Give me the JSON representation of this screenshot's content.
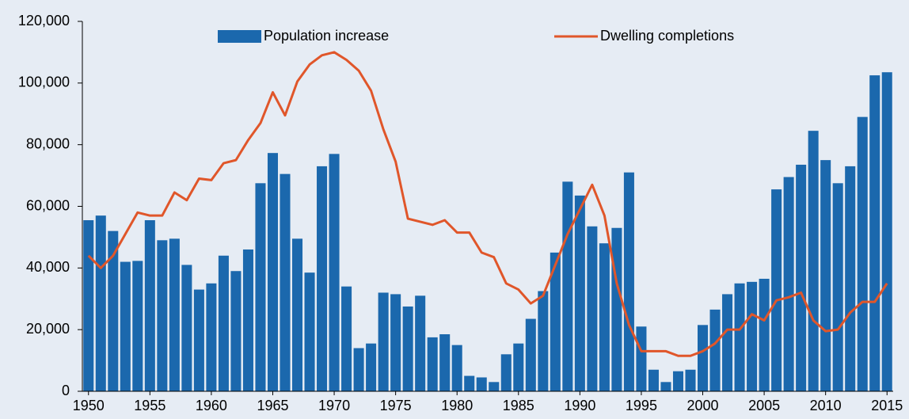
{
  "chart_data": {
    "type": "bar-line",
    "x": [
      1950,
      1951,
      1952,
      1953,
      1954,
      1955,
      1956,
      1957,
      1958,
      1959,
      1960,
      1961,
      1962,
      1963,
      1964,
      1965,
      1966,
      1967,
      1968,
      1969,
      1970,
      1971,
      1972,
      1973,
      1974,
      1975,
      1976,
      1977,
      1978,
      1979,
      1980,
      1981,
      1982,
      1983,
      1984,
      1985,
      1986,
      1987,
      1988,
      1989,
      1990,
      1991,
      1992,
      1993,
      1994,
      1995,
      1996,
      1997,
      1998,
      1999,
      2000,
      2001,
      2002,
      2003,
      2004,
      2005,
      2006,
      2007,
      2008,
      2009,
      2010,
      2011,
      2012,
      2013,
      2014,
      2015
    ],
    "series": [
      {
        "name": "Population increase",
        "kind": "bar",
        "color": "#1b68ad",
        "values": [
          55500,
          57000,
          52000,
          42000,
          42300,
          55500,
          49000,
          49500,
          41000,
          33000,
          35000,
          44000,
          39000,
          46000,
          67500,
          77300,
          70500,
          49500,
          38500,
          73000,
          77000,
          34000,
          14000,
          15500,
          32000,
          31500,
          27500,
          31000,
          17500,
          18500,
          15000,
          5000,
          4500,
          3000,
          12000,
          15500,
          23500,
          32500,
          45000,
          68000,
          63500,
          53500,
          48000,
          53000,
          71000,
          21000,
          7000,
          3000,
          6500,
          7000,
          21500,
          26500,
          31500,
          35000,
          35500,
          36500,
          65500,
          69500,
          73500,
          84500,
          75000,
          67500,
          73000,
          89000,
          102500,
          103500
        ]
      },
      {
        "name": "Dwelling completions",
        "kind": "line",
        "color": "#e0562a",
        "values": [
          44000,
          40000,
          44000,
          51000,
          58000,
          57000,
          57000,
          64500,
          62000,
          69000,
          68500,
          74000,
          75000,
          81500,
          87000,
          97000,
          89500,
          100500,
          106000,
          109000,
          110000,
          107500,
          104000,
          97500,
          85000,
          74500,
          56000,
          55000,
          54000,
          55500,
          51500,
          51500,
          45000,
          43500,
          35000,
          33000,
          28500,
          31000,
          41000,
          51000,
          59000,
          67000,
          57000,
          35000,
          21500,
          13000,
          13000,
          13000,
          11500,
          11500,
          13000,
          15500,
          20000,
          20000,
          25000,
          23000,
          29500,
          30500,
          32000,
          23000,
          19500,
          20000,
          25500,
          29000,
          29000,
          35000
        ]
      }
    ],
    "xlim": [
      1949.5,
      2015.5
    ],
    "xticks": [
      1950,
      1955,
      1960,
      1965,
      1970,
      1975,
      1980,
      1985,
      1990,
      1995,
      2000,
      2005,
      2010,
      2015
    ],
    "ylim": [
      0,
      120000
    ],
    "yticks": [
      0,
      {
        "value": 20000,
        "label": "20,000"
      },
      {
        "value": 40000,
        "label": "40,000"
      },
      {
        "value": 60000,
        "label": "60,000"
      },
      {
        "value": 80000,
        "label": "80,000"
      },
      {
        "value": 100000,
        "label": "100,000"
      },
      {
        "value": 120000,
        "label": "120,000"
      }
    ]
  }
}
